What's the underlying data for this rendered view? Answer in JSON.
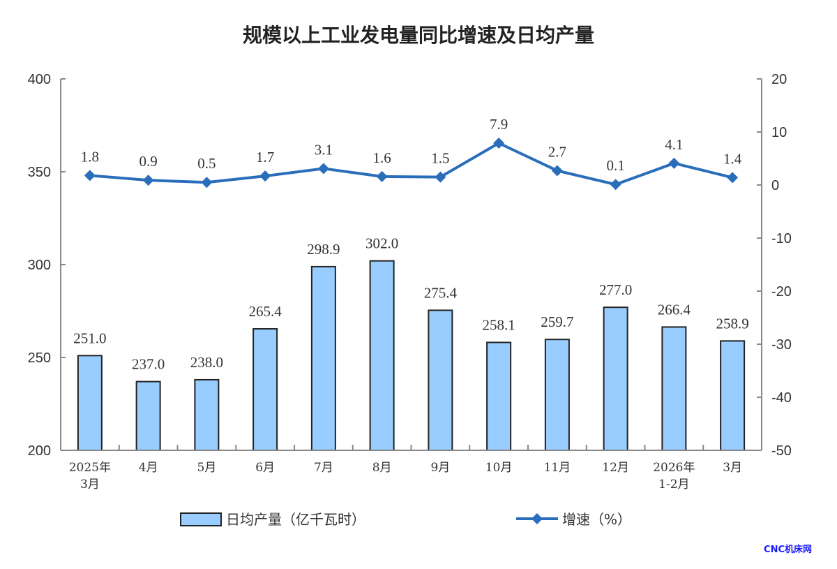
{
  "chart_data": {
    "type": "bar",
    "title": "规模以上工业发电量同比增速及日均产量",
    "categories": [
      [
        "2025年",
        "3月"
      ],
      [
        "4月"
      ],
      [
        "5月"
      ],
      [
        "6月"
      ],
      [
        "7月"
      ],
      [
        "8月"
      ],
      [
        "9月"
      ],
      [
        "10月"
      ],
      [
        "11月"
      ],
      [
        "12月"
      ],
      [
        "2026年",
        "1-2月"
      ],
      [
        "3月"
      ]
    ],
    "series": [
      {
        "name": "日均产量（亿千瓦时）",
        "type": "bar",
        "axis": "left",
        "values": [
          251.0,
          237.0,
          238.0,
          265.4,
          298.9,
          302.0,
          275.4,
          258.1,
          259.7,
          277.0,
          266.4,
          258.9
        ],
        "labels": [
          "251.0",
          "237.0",
          "238.0",
          "265.4",
          "298.9",
          "302.0",
          "275.4",
          "258.1",
          "259.7",
          "277.0",
          "266.4",
          "258.9"
        ],
        "color": "#99ccff"
      },
      {
        "name": "增速（%）",
        "type": "line",
        "axis": "right",
        "values": [
          1.8,
          0.9,
          0.5,
          1.7,
          3.1,
          1.6,
          1.5,
          7.9,
          2.7,
          0.1,
          4.1,
          1.4
        ],
        "labels": [
          "1.8",
          "0.9",
          "0.5",
          "1.7",
          "3.1",
          "1.6",
          "1.5",
          "7.9",
          "2.7",
          "0.1",
          "4.1",
          "1.4"
        ],
        "color": "#2a6ebb"
      }
    ],
    "y_left": {
      "lim": [
        200,
        400
      ],
      "ticks": [
        "200",
        "250",
        "300",
        "350",
        "400"
      ]
    },
    "y_right": {
      "lim": [
        -50,
        20
      ],
      "ticks": [
        "-50",
        "-40",
        "-30",
        "-20",
        "-10",
        "0",
        "10",
        "20"
      ]
    },
    "grid": false,
    "legend_position": "bottom"
  },
  "watermark": "CNC机床网"
}
